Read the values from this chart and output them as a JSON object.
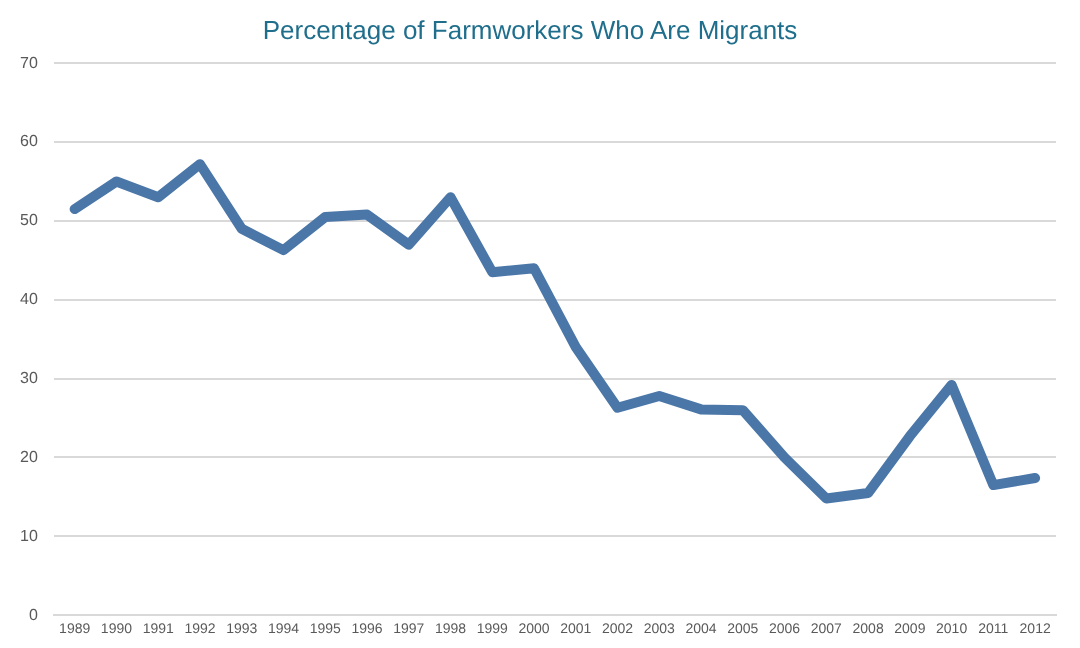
{
  "chart_data": {
    "type": "line",
    "title": "Percentage of Farmworkers Who Are Migrants",
    "categories": [
      "1989",
      "1990",
      "1991",
      "1992",
      "1993",
      "1994",
      "1995",
      "1996",
      "1997",
      "1998",
      "1999",
      "2000",
      "2001",
      "2002",
      "2003",
      "2004",
      "2005",
      "2006",
      "2007",
      "2008",
      "2009",
      "2010",
      "2011",
      "2012"
    ],
    "series": [
      {
        "color": "#4a76a8",
        "values": [
          51.5,
          55,
          53,
          57.2,
          49,
          46.3,
          50.5,
          50.8,
          47,
          53,
          43.5,
          44,
          34,
          26.3,
          27.8,
          26.1,
          26,
          20,
          14.8,
          15.5,
          22.7,
          29.2,
          16.5,
          17.4
        ]
      }
    ],
    "ylim": [
      0,
      70
    ],
    "yticks": [
      0,
      10,
      20,
      30,
      40,
      50,
      60,
      70
    ],
    "grid": "y",
    "legend": false,
    "marker": "none",
    "line_style": "solid"
  }
}
